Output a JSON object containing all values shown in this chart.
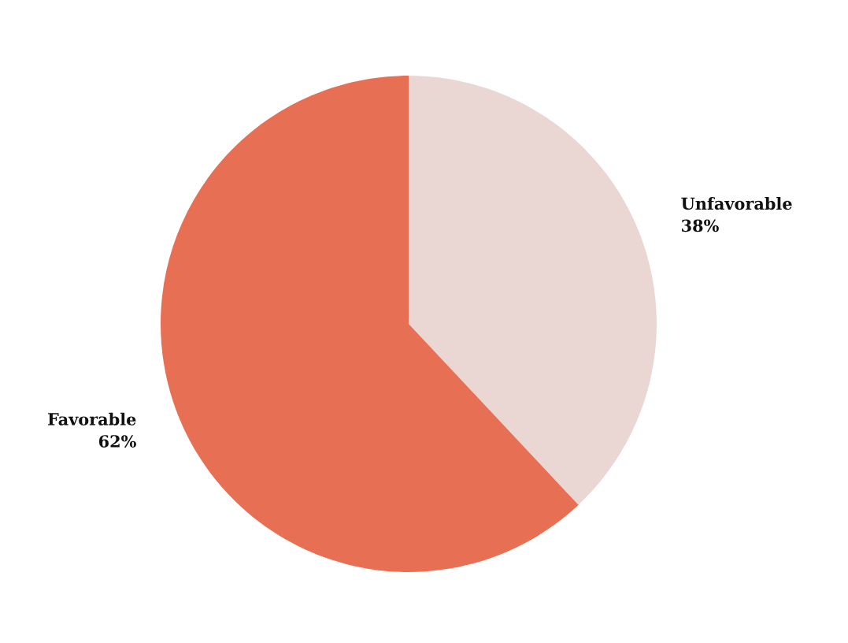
{
  "chart_data": {
    "type": "pie",
    "categories": [
      "Unfavorable",
      "Favorable"
    ],
    "values": [
      38,
      62
    ],
    "value_labels": [
      "38%",
      "62%"
    ],
    "colors": [
      "#ead7d4",
      "#e77054"
    ]
  }
}
